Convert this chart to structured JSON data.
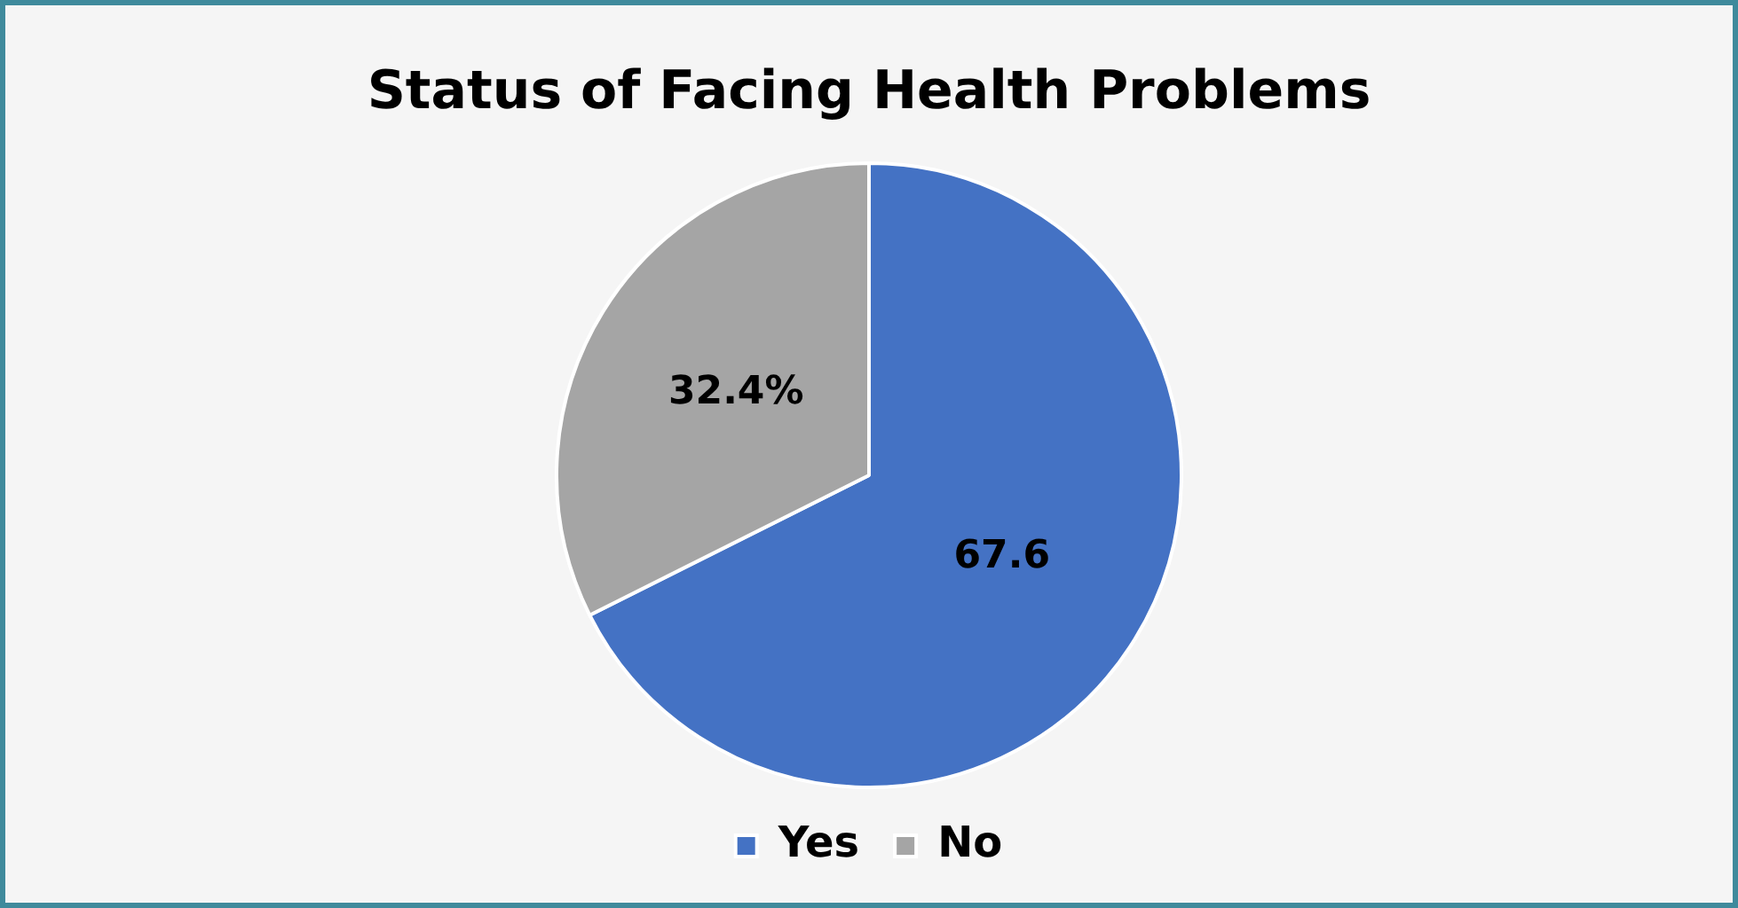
{
  "chart_data": {
    "type": "pie",
    "title": "Status of Facing Health Problems",
    "categories": [
      "Yes",
      "No"
    ],
    "values": [
      67.6,
      32.4
    ],
    "colors": [
      "#4472c4",
      "#a5a5a5"
    ],
    "value_labels": [
      "67.6",
      "32.4%"
    ],
    "legend": "bottom"
  }
}
